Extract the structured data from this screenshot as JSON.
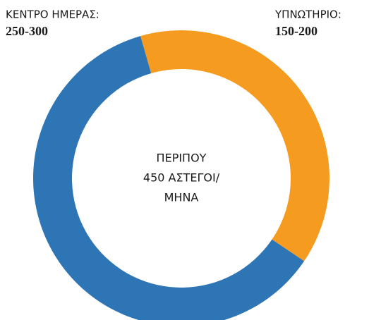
{
  "chart_data": {
    "type": "donut",
    "categories": [
      "ΚΕΝΤΡΟ ΗΜΕΡΑΣ:",
      "ΥΠΝΩΤΗΡΙΟ:"
    ],
    "values": [
      275,
      175
    ],
    "value_labels": [
      "250-300",
      "150-200"
    ],
    "colors": [
      "#2e75b6",
      "#f49b20"
    ],
    "startangle": 124,
    "center_text": [
      "ΠΕΡΙΠΟΥ",
      "450 ΑΣΤΕΓΟΙ/",
      "ΜΗΝΑ"
    ]
  }
}
